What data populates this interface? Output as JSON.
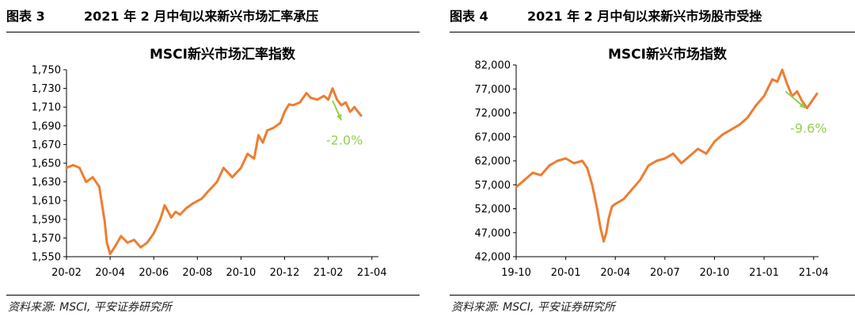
{
  "panels": [
    {
      "fig_label": "图表 3",
      "heading": "2021 年 2 月中旬以来新兴市场汇率承压",
      "source": "资料来源: MSCI, 平安证券研究所",
      "chart_data": {
        "type": "line",
        "title": "MSCI新兴市场汇率指数",
        "xlabel": "",
        "ylabel": "",
        "ylim": [
          1550,
          1750
        ],
        "yticks": [
          1550,
          1570,
          1590,
          1610,
          1630,
          1650,
          1670,
          1690,
          1710,
          1730,
          1750
        ],
        "ytick_labels": [
          "1,550",
          "1,570",
          "1,590",
          "1,610",
          "1,630",
          "1,650",
          "1,670",
          "1,690",
          "1,710",
          "1,730",
          "1,750"
        ],
        "xlim": [
          0,
          14.3
        ],
        "xticks": [
          0,
          2,
          4,
          6,
          8,
          10,
          12,
          14
        ],
        "xtick_labels": [
          "20-02",
          "20-04",
          "20-06",
          "20-08",
          "20-10",
          "20-12",
          "21-02",
          "21-04"
        ],
        "grid": false,
        "line_color": "#ED7D31",
        "annotation_color": "#92D050",
        "annotation": {
          "text": "-2.0%",
          "arrow_from": [
            12.2,
            1717
          ],
          "arrow_to": [
            12.6,
            1696
          ]
        },
        "series": [
          {
            "x": [
              0,
              0.3,
              0.6,
              0.9,
              1.2,
              1.5,
              1.6,
              1.75,
              1.85,
              2.0,
              2.2,
              2.5,
              2.8,
              3.1,
              3.4,
              3.7,
              4.0,
              4.3,
              4.5,
              4.8,
              5.0,
              5.2,
              5.5,
              5.8,
              6.2,
              6.5,
              6.9,
              7.2,
              7.6,
              8.0,
              8.3,
              8.6,
              8.8,
              9.0,
              9.2,
              9.5,
              9.8,
              10.0,
              10.2,
              10.4,
              10.7,
              11.0,
              11.2,
              11.5,
              11.8,
              12.0,
              12.2,
              12.4,
              12.6,
              12.8,
              13.0,
              13.2,
              13.5
            ],
            "y": [
              1645,
              1648,
              1645,
              1630,
              1635,
              1625,
              1610,
              1588,
              1565,
              1553,
              1560,
              1572,
              1565,
              1568,
              1560,
              1565,
              1575,
              1590,
              1605,
              1592,
              1598,
              1595,
              1602,
              1607,
              1612,
              1620,
              1630,
              1645,
              1635,
              1645,
              1660,
              1655,
              1680,
              1672,
              1685,
              1688,
              1693,
              1705,
              1713,
              1712,
              1715,
              1725,
              1720,
              1718,
              1722,
              1718,
              1730,
              1718,
              1712,
              1715,
              1705,
              1710,
              1701
            ]
          }
        ]
      }
    },
    {
      "fig_label": "图表 4",
      "heading": "2021 年 2 月中旬以来新兴市场股市受挫",
      "source": "资料来源: MSCI, 平安证券研究所",
      "chart_data": {
        "type": "line",
        "title": "MSCI新兴市场指数",
        "xlabel": "",
        "ylabel": "",
        "ylim": [
          42000,
          82000
        ],
        "yticks": [
          42000,
          47000,
          52000,
          57000,
          62000,
          67000,
          72000,
          77000,
          82000
        ],
        "ytick_labels": [
          "42,000",
          "47,000",
          "52,000",
          "57,000",
          "62,000",
          "67,000",
          "72,000",
          "77,000",
          "82,000"
        ],
        "xlim": [
          0,
          18.3
        ],
        "xticks": [
          0,
          3,
          6,
          9,
          12,
          15,
          18
        ],
        "xtick_labels": [
          "19-10",
          "20-01",
          "20-04",
          "20-07",
          "20-10",
          "21-01",
          "21-04"
        ],
        "grid": false,
        "line_color": "#ED7D31",
        "annotation_color": "#92D050",
        "annotation": {
          "text": "-9.6%",
          "arrow_from": [
            16.3,
            76500
          ],
          "arrow_to": [
            17.5,
            73000
          ]
        },
        "series": [
          {
            "x": [
              0,
              0.5,
              1.0,
              1.5,
              2.0,
              2.5,
              3.0,
              3.5,
              4.0,
              4.3,
              4.6,
              4.9,
              5.1,
              5.3,
              5.45,
              5.6,
              5.8,
              6.0,
              6.5,
              7.0,
              7.5,
              8.0,
              8.5,
              9.0,
              9.5,
              10.0,
              10.5,
              11.0,
              11.5,
              12.0,
              12.5,
              13.0,
              13.5,
              14.0,
              14.5,
              15.0,
              15.5,
              15.8,
              16.1,
              16.4,
              16.7,
              17.0,
              17.3,
              17.6,
              17.9,
              18.2
            ],
            "y": [
              56500,
              58000,
              59500,
              59000,
              61000,
              62000,
              62500,
              61500,
              62000,
              60500,
              57000,
              52000,
              48000,
              45200,
              47000,
              50000,
              52500,
              53000,
              54000,
              56000,
              58000,
              61000,
              62000,
              62500,
              63500,
              61500,
              63000,
              64500,
              63500,
              66000,
              67500,
              68500,
              69500,
              71000,
              73500,
              75500,
              79000,
              78500,
              81000,
              78000,
              75500,
              76500,
              74500,
              73000,
              74500,
              76000
            ]
          }
        ]
      }
    }
  ]
}
